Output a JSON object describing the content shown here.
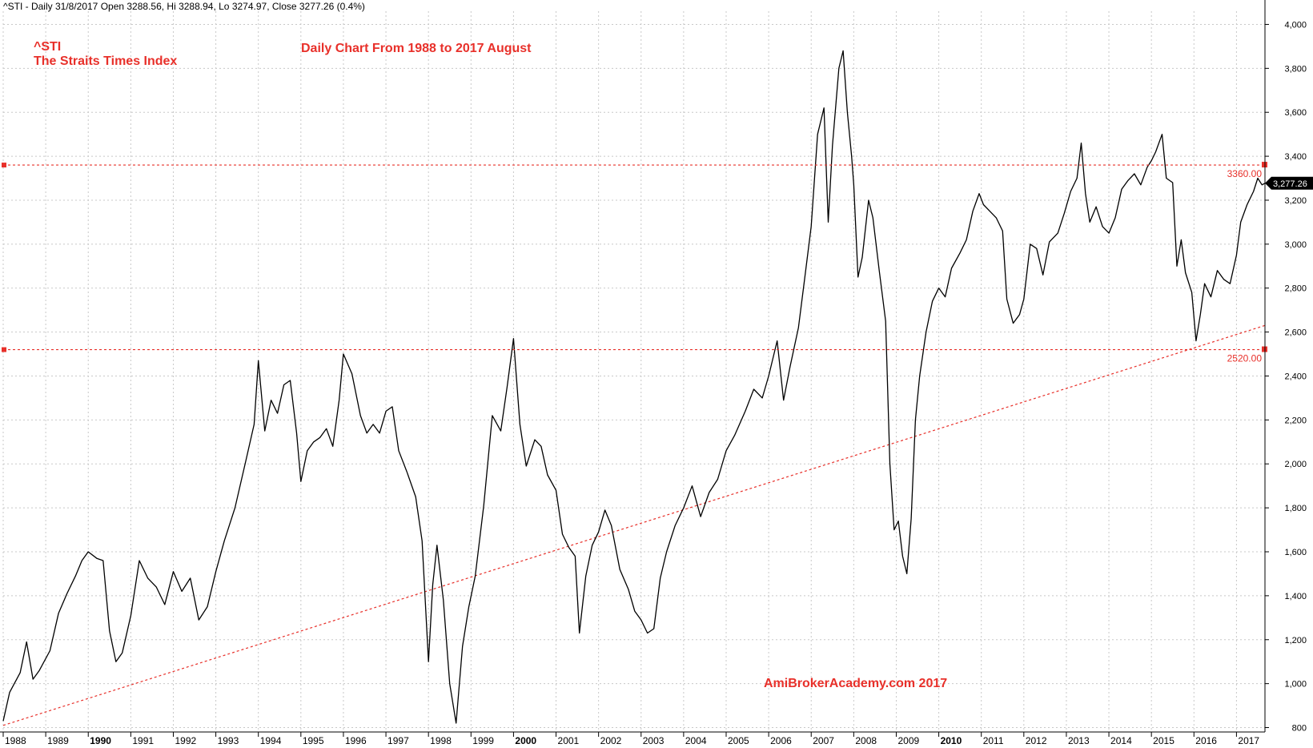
{
  "header": {
    "text": "^STI - Daily 31/8/2017 Open 3288.56, Hi 3288.94, Lo 3274.97, Close 3277.26 (0.4%)"
  },
  "annotations": {
    "symbol": "^STI",
    "index_name": "The Straits Times Index",
    "subtitle": "Daily Chart From 1988 to 2017 August",
    "watermark": "AmiBrokerAcademy.com  2017"
  },
  "colors": {
    "price_line": "#000000",
    "annotation_red": "#e8302a",
    "grid": "#c8c8c8",
    "last_price_bg": "#000000"
  },
  "chart_data": {
    "type": "line",
    "title": "Daily Chart From 1988 to 2017 August",
    "xlabel": "",
    "ylabel": "",
    "xlim": [
      1988.0,
      2017.67
    ],
    "ylim": [
      780,
      4060
    ],
    "y_ticks": [
      "800",
      "1,000",
      "1,200",
      "1,400",
      "1,600",
      "1,800",
      "2,000",
      "2,200",
      "2,400",
      "2,600",
      "2,800",
      "3,000",
      "3,200",
      "3,400",
      "3,600",
      "3,800",
      "4,000"
    ],
    "x_ticks": [
      {
        "label": "1988",
        "bold": false
      },
      {
        "label": "1989",
        "bold": false
      },
      {
        "label": "1990",
        "bold": true
      },
      {
        "label": "1991",
        "bold": false
      },
      {
        "label": "1992",
        "bold": false
      },
      {
        "label": "1993",
        "bold": false
      },
      {
        "label": "1994",
        "bold": false
      },
      {
        "label": "1995",
        "bold": false
      },
      {
        "label": "1996",
        "bold": false
      },
      {
        "label": "1997",
        "bold": false
      },
      {
        "label": "1998",
        "bold": false
      },
      {
        "label": "1999",
        "bold": false
      },
      {
        "label": "2000",
        "bold": true
      },
      {
        "label": "2001",
        "bold": false
      },
      {
        "label": "2002",
        "bold": false
      },
      {
        "label": "2003",
        "bold": false
      },
      {
        "label": "2004",
        "bold": false
      },
      {
        "label": "2005",
        "bold": false
      },
      {
        "label": "2006",
        "bold": false
      },
      {
        "label": "2007",
        "bold": false
      },
      {
        "label": "2008",
        "bold": false
      },
      {
        "label": "2009",
        "bold": false
      },
      {
        "label": "2010",
        "bold": true
      },
      {
        "label": "2011",
        "bold": false
      },
      {
        "label": "2012",
        "bold": false
      },
      {
        "label": "2013",
        "bold": false
      },
      {
        "label": "2014",
        "bold": false
      },
      {
        "label": "2015",
        "bold": false
      },
      {
        "label": "2016",
        "bold": false
      },
      {
        "label": "2017",
        "bold": false
      }
    ],
    "grid": true,
    "series": [
      {
        "values": [
          [
            1988.0,
            830
          ],
          [
            1988.15,
            960
          ],
          [
            1988.4,
            1050
          ],
          [
            1988.55,
            1190
          ],
          [
            1988.7,
            1020
          ],
          [
            1988.85,
            1060
          ],
          [
            1989.1,
            1150
          ],
          [
            1989.3,
            1320
          ],
          [
            1989.5,
            1410
          ],
          [
            1989.7,
            1490
          ],
          [
            1989.85,
            1560
          ],
          [
            1990.0,
            1600
          ],
          [
            1990.2,
            1570
          ],
          [
            1990.35,
            1560
          ],
          [
            1990.5,
            1240
          ],
          [
            1990.65,
            1100
          ],
          [
            1990.8,
            1140
          ],
          [
            1991.0,
            1310
          ],
          [
            1991.2,
            1560
          ],
          [
            1991.4,
            1480
          ],
          [
            1991.6,
            1440
          ],
          [
            1991.8,
            1360
          ],
          [
            1992.0,
            1510
          ],
          [
            1992.2,
            1420
          ],
          [
            1992.4,
            1480
          ],
          [
            1992.6,
            1290
          ],
          [
            1992.8,
            1350
          ],
          [
            1993.0,
            1510
          ],
          [
            1993.2,
            1650
          ],
          [
            1993.45,
            1800
          ],
          [
            1993.7,
            2010
          ],
          [
            1993.9,
            2180
          ],
          [
            1994.0,
            2470
          ],
          [
            1994.15,
            2150
          ],
          [
            1994.3,
            2290
          ],
          [
            1994.45,
            2230
          ],
          [
            1994.6,
            2360
          ],
          [
            1994.75,
            2380
          ],
          [
            1994.9,
            2140
          ],
          [
            1995.0,
            1920
          ],
          [
            1995.15,
            2060
          ],
          [
            1995.3,
            2100
          ],
          [
            1995.45,
            2120
          ],
          [
            1995.6,
            2160
          ],
          [
            1995.75,
            2080
          ],
          [
            1995.9,
            2290
          ],
          [
            1996.0,
            2500
          ],
          [
            1996.2,
            2410
          ],
          [
            1996.4,
            2220
          ],
          [
            1996.55,
            2140
          ],
          [
            1996.7,
            2180
          ],
          [
            1996.85,
            2140
          ],
          [
            1997.0,
            2240
          ],
          [
            1997.15,
            2260
          ],
          [
            1997.3,
            2060
          ],
          [
            1997.5,
            1960
          ],
          [
            1997.7,
            1850
          ],
          [
            1997.85,
            1650
          ],
          [
            1998.0,
            1100
          ],
          [
            1998.1,
            1450
          ],
          [
            1998.2,
            1630
          ],
          [
            1998.35,
            1380
          ],
          [
            1998.5,
            1000
          ],
          [
            1998.65,
            820
          ],
          [
            1998.8,
            1170
          ],
          [
            1998.95,
            1350
          ],
          [
            1999.1,
            1490
          ],
          [
            1999.3,
            1810
          ],
          [
            1999.5,
            2220
          ],
          [
            1999.7,
            2150
          ],
          [
            1999.85,
            2350
          ],
          [
            2000.0,
            2570
          ],
          [
            2000.15,
            2180
          ],
          [
            2000.3,
            1990
          ],
          [
            2000.5,
            2110
          ],
          [
            2000.65,
            2080
          ],
          [
            2000.8,
            1950
          ],
          [
            2001.0,
            1880
          ],
          [
            2001.15,
            1680
          ],
          [
            2001.3,
            1620
          ],
          [
            2001.45,
            1580
          ],
          [
            2001.55,
            1230
          ],
          [
            2001.7,
            1490
          ],
          [
            2001.85,
            1630
          ],
          [
            2002.0,
            1690
          ],
          [
            2002.15,
            1790
          ],
          [
            2002.3,
            1720
          ],
          [
            2002.5,
            1520
          ],
          [
            2002.7,
            1430
          ],
          [
            2002.85,
            1330
          ],
          [
            2003.0,
            1290
          ],
          [
            2003.15,
            1230
          ],
          [
            2003.3,
            1250
          ],
          [
            2003.45,
            1480
          ],
          [
            2003.6,
            1600
          ],
          [
            2003.8,
            1720
          ],
          [
            2004.0,
            1800
          ],
          [
            2004.2,
            1900
          ],
          [
            2004.4,
            1760
          ],
          [
            2004.6,
            1870
          ],
          [
            2004.8,
            1930
          ],
          [
            2005.0,
            2060
          ],
          [
            2005.2,
            2130
          ],
          [
            2005.45,
            2240
          ],
          [
            2005.65,
            2340
          ],
          [
            2005.85,
            2300
          ],
          [
            2006.0,
            2400
          ],
          [
            2006.2,
            2560
          ],
          [
            2006.35,
            2290
          ],
          [
            2006.5,
            2440
          ],
          [
            2006.7,
            2620
          ],
          [
            2006.85,
            2850
          ],
          [
            2007.0,
            3080
          ],
          [
            2007.15,
            3500
          ],
          [
            2007.3,
            3620
          ],
          [
            2007.4,
            3100
          ],
          [
            2007.5,
            3450
          ],
          [
            2007.65,
            3800
          ],
          [
            2007.75,
            3880
          ],
          [
            2007.85,
            3600
          ],
          [
            2007.95,
            3400
          ],
          [
            2008.0,
            3270
          ],
          [
            2008.1,
            2850
          ],
          [
            2008.2,
            2940
          ],
          [
            2008.35,
            3200
          ],
          [
            2008.45,
            3120
          ],
          [
            2008.6,
            2880
          ],
          [
            2008.75,
            2650
          ],
          [
            2008.85,
            2000
          ],
          [
            2008.95,
            1700
          ],
          [
            2009.05,
            1740
          ],
          [
            2009.15,
            1580
          ],
          [
            2009.25,
            1500
          ],
          [
            2009.35,
            1750
          ],
          [
            2009.45,
            2200
          ],
          [
            2009.55,
            2400
          ],
          [
            2009.7,
            2600
          ],
          [
            2009.85,
            2740
          ],
          [
            2010.0,
            2800
          ],
          [
            2010.15,
            2760
          ],
          [
            2010.3,
            2890
          ],
          [
            2010.5,
            2960
          ],
          [
            2010.65,
            3020
          ],
          [
            2010.8,
            3150
          ],
          [
            2010.95,
            3230
          ],
          [
            2011.05,
            3180
          ],
          [
            2011.2,
            3150
          ],
          [
            2011.35,
            3120
          ],
          [
            2011.5,
            3060
          ],
          [
            2011.6,
            2750
          ],
          [
            2011.75,
            2640
          ],
          [
            2011.9,
            2680
          ],
          [
            2012.0,
            2750
          ],
          [
            2012.15,
            3000
          ],
          [
            2012.3,
            2980
          ],
          [
            2012.45,
            2860
          ],
          [
            2012.6,
            3010
          ],
          [
            2012.8,
            3050
          ],
          [
            2012.95,
            3140
          ],
          [
            2013.1,
            3240
          ],
          [
            2013.25,
            3300
          ],
          [
            2013.35,
            3460
          ],
          [
            2013.45,
            3230
          ],
          [
            2013.55,
            3100
          ],
          [
            2013.7,
            3170
          ],
          [
            2013.85,
            3080
          ],
          [
            2014.0,
            3050
          ],
          [
            2014.15,
            3120
          ],
          [
            2014.3,
            3250
          ],
          [
            2014.45,
            3290
          ],
          [
            2014.6,
            3320
          ],
          [
            2014.75,
            3270
          ],
          [
            2014.9,
            3350
          ],
          [
            2015.0,
            3380
          ],
          [
            2015.1,
            3420
          ],
          [
            2015.25,
            3500
          ],
          [
            2015.35,
            3300
          ],
          [
            2015.5,
            3280
          ],
          [
            2015.6,
            2900
          ],
          [
            2015.7,
            3020
          ],
          [
            2015.8,
            2870
          ],
          [
            2015.95,
            2780
          ],
          [
            2016.05,
            2560
          ],
          [
            2016.15,
            2680
          ],
          [
            2016.25,
            2820
          ],
          [
            2016.4,
            2760
          ],
          [
            2016.55,
            2880
          ],
          [
            2016.7,
            2840
          ],
          [
            2016.85,
            2820
          ],
          [
            2017.0,
            2950
          ],
          [
            2017.1,
            3100
          ],
          [
            2017.25,
            3180
          ],
          [
            2017.4,
            3240
          ],
          [
            2017.5,
            3300
          ],
          [
            2017.6,
            3270
          ],
          [
            2017.67,
            3277
          ]
        ]
      }
    ],
    "horizontal_levels": [
      {
        "value": 3360,
        "label": "3360.00"
      },
      {
        "value": 2520,
        "label": "2520.00"
      }
    ],
    "trendline": {
      "start": [
        1988.0,
        810
      ],
      "end": [
        2017.67,
        2630
      ]
    },
    "last_value": {
      "value": 3277.26,
      "label": "3,277.26"
    }
  }
}
